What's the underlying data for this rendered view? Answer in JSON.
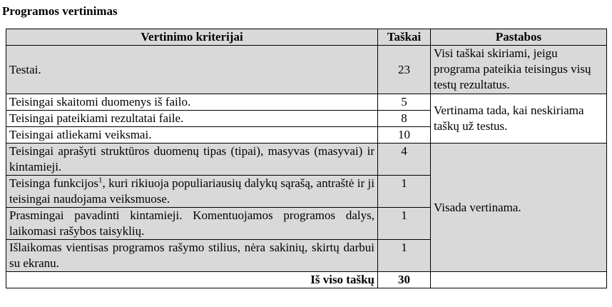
{
  "title": "Programos vertinimas",
  "headers": {
    "criteria": "Vertinimo kriterijai",
    "points": "Taškai",
    "notes": "Pastabos"
  },
  "rows": [
    {
      "criterion": "Testai.",
      "points": "23"
    },
    {
      "criterion": "Teisingai skaitomi duomenys iš failo.",
      "points": "5"
    },
    {
      "criterion": "Teisingai pateikiami rezultatai faile.",
      "points": "8"
    },
    {
      "criterion": "Teisingai atliekami veiksmai.",
      "points": "10"
    },
    {
      "criterion": "Teisingai aprašyti struktūros duomenų tipas (tipai), masyvas (masyvai) ir kintamieji.",
      "points": "4"
    },
    {
      "criterion_pre": "Teisinga funkcijos",
      "footnote": "1",
      "criterion_post": ", kuri rikiuoja populiariausių dalykų sąrašą, antraštė ir ji teisingai naudojama veiksmuose.",
      "points": "1"
    },
    {
      "criterion": "Prasmingai pavadinti kintamieji. Komentuojamos programos dalys, laikomasi rašybos taisyklių.",
      "points": "1"
    },
    {
      "criterion": "Išlaikomas vientisas programos rašymo stilius, nėra sakinių, skirtų darbui su ekranu.",
      "points": "1"
    }
  ],
  "notes": {
    "tests": "Visi taškai skiriami, jeigu programa pateikia teisingus visų testų rezultatus.",
    "files": "Vertinama tada, kai neskiriama taškų už testus.",
    "always": "Visada vertinama."
  },
  "total": {
    "label": "Iš viso taškų",
    "value": "30"
  },
  "colors": {
    "shade": "#d9d9d9",
    "border": "#000000"
  }
}
